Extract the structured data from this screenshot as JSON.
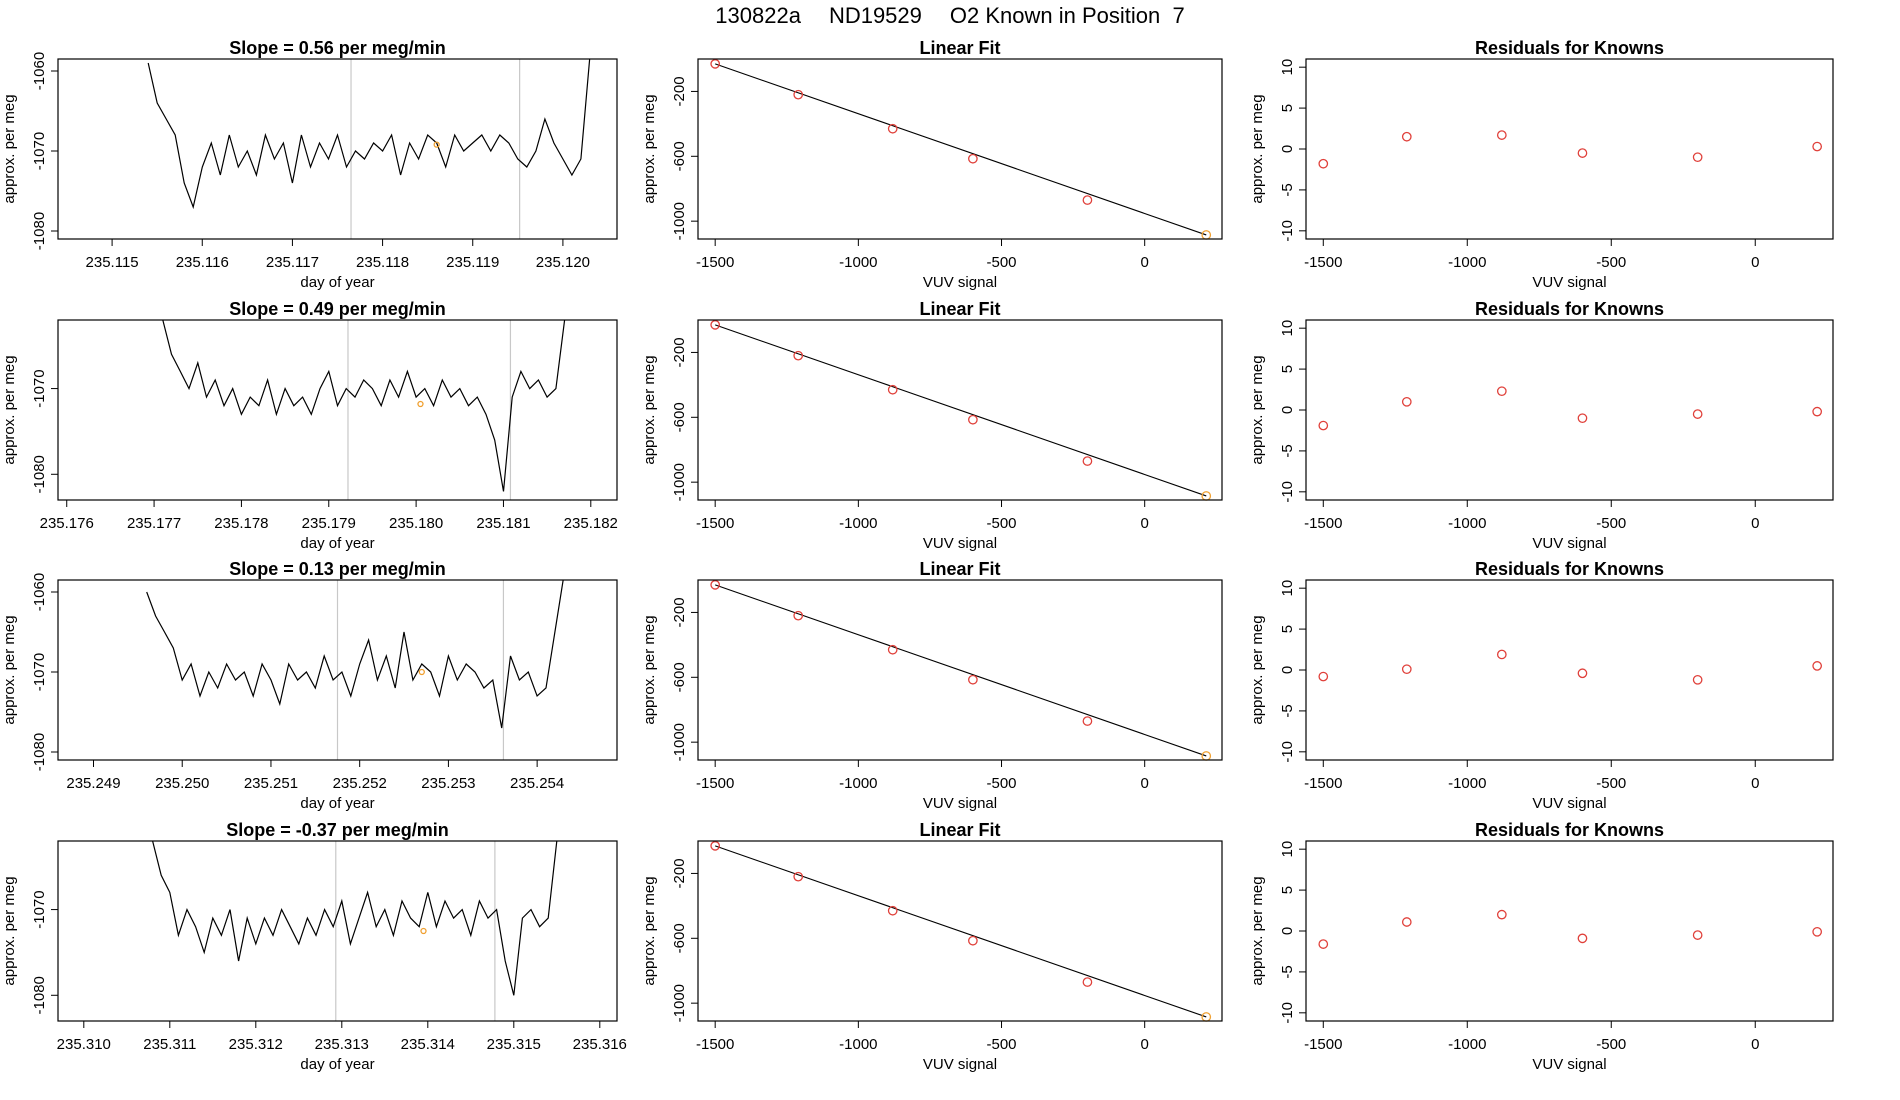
{
  "page": {
    "title_parts": [
      "130822a",
      "ND19529",
      "O2 Known in Position  7"
    ]
  },
  "chart_data": [
    {
      "type": "line",
      "title": "Slope =  0.56  per meg/min",
      "xlabel": "day of year",
      "ylabel": "approx. per meg",
      "xlim": [
        235.1144,
        235.1206
      ],
      "ylim": [
        -1081,
        -1058.5
      ],
      "xticks": [
        235.115,
        235.116,
        235.117,
        235.118,
        235.119,
        235.12
      ],
      "xtick_labels": [
        "235.115",
        "235.116",
        "235.117",
        "235.118",
        "235.119",
        "235.120"
      ],
      "yticks": [
        -1080,
        -1070,
        -1060
      ],
      "ytick_labels": [
        "-1080",
        "-1070",
        "-1060"
      ],
      "vlines": [
        235.11765,
        235.11952
      ],
      "highlight_point": {
        "x": 235.1186,
        "y": -1069.2
      },
      "x": [
        235.1154,
        235.1155,
        235.1156,
        235.1157,
        235.1158,
        235.1159,
        235.116,
        235.1161,
        235.1162,
        235.1163,
        235.1164,
        235.1165,
        235.1166,
        235.1167,
        235.1168,
        235.1169,
        235.117,
        235.1171,
        235.1172,
        235.1173,
        235.1174,
        235.1175,
        235.1176,
        235.1177,
        235.1178,
        235.1179,
        235.118,
        235.1181,
        235.1182,
        235.1183,
        235.1184,
        235.1185,
        235.1186,
        235.1187,
        235.1188,
        235.1189,
        235.119,
        235.1191,
        235.1192,
        235.1193,
        235.1194,
        235.1195,
        235.1196,
        235.1197,
        235.1198,
        235.1199,
        235.12,
        235.1201,
        235.1202,
        235.1203
      ],
      "y": [
        -1059,
        -1064,
        -1066,
        -1068,
        -1074,
        -1077,
        -1072,
        -1069,
        -1073,
        -1068,
        -1072,
        -1070,
        -1073,
        -1068,
        -1071,
        -1069,
        -1074,
        -1068,
        -1072,
        -1069,
        -1071,
        -1068,
        -1072,
        -1070,
        -1071,
        -1069,
        -1070,
        -1068,
        -1073,
        -1069,
        -1071,
        -1068,
        -1069,
        -1072,
        -1068,
        -1070,
        -1069,
        -1068,
        -1070,
        -1068,
        -1069,
        -1071,
        -1072,
        -1070,
        -1066,
        -1069,
        -1071,
        -1073,
        -1071,
        -1058
      ]
    },
    {
      "type": "scatter",
      "title": "Linear Fit",
      "xlabel": "VUV signal",
      "ylabel": "approx. per meg",
      "xlim": [
        -1560,
        270
      ],
      "ylim": [
        -1110,
        0
      ],
      "xticks": [
        -1500,
        -1000,
        -500,
        0
      ],
      "yticks": [
        -200,
        -600,
        -1000
      ],
      "x": [
        -1500,
        -1210,
        -880,
        -600,
        -200,
        215
      ],
      "y": [
        -30,
        -220,
        -430,
        -615,
        -870,
        -1085
      ],
      "fit_line": [
        [
          -1500,
          -30
        ],
        [
          215,
          -1085
        ]
      ]
    },
    {
      "type": "scatter",
      "title": "Residuals for Knowns",
      "xlabel": "VUV signal",
      "ylabel": "approx. per meg",
      "xlim": [
        -1560,
        270
      ],
      "ylim": [
        -11,
        11
      ],
      "xticks": [
        -1500,
        -1000,
        -500,
        0
      ],
      "yticks": [
        -10,
        -5,
        0,
        5,
        10
      ],
      "x": [
        -1500,
        -1210,
        -880,
        -600,
        -200,
        215
      ],
      "y": [
        -1.8,
        1.5,
        1.7,
        -0.5,
        -1.0,
        0.3
      ]
    },
    {
      "type": "line",
      "title": "Slope =  0.49  per meg/min",
      "xlabel": "day of year",
      "ylabel": "approx. per meg",
      "xlim": [
        235.1759,
        235.1823
      ],
      "ylim": [
        -1083,
        -1062
      ],
      "xticks": [
        235.176,
        235.177,
        235.178,
        235.179,
        235.18,
        235.181,
        235.182
      ],
      "xtick_labels": [
        "235.176",
        "235.177",
        "235.178",
        "235.179",
        "235.180",
        "235.181",
        "235.182"
      ],
      "yticks": [
        -1080,
        -1070
      ],
      "ytick_labels": [
        "-1080",
        "-1070"
      ],
      "vlines": [
        235.17922,
        235.18108
      ],
      "highlight_point": {
        "x": 235.18005,
        "y": -1071.8
      },
      "x": [
        235.1771,
        235.1772,
        235.1773,
        235.1774,
        235.1775,
        235.1776,
        235.1777,
        235.1778,
        235.1779,
        235.178,
        235.1781,
        235.1782,
        235.1783,
        235.1784,
        235.1785,
        235.1786,
        235.1787,
        235.1788,
        235.1789,
        235.179,
        235.1791,
        235.1792,
        235.1793,
        235.1794,
        235.1795,
        235.1796,
        235.1797,
        235.1798,
        235.1799,
        235.18,
        235.1801,
        235.1802,
        235.1803,
        235.1804,
        235.1805,
        235.1806,
        235.1807,
        235.1808,
        235.1809,
        235.181,
        235.1811,
        235.1812,
        235.1813,
        235.1814,
        235.1815,
        235.1816,
        235.1817
      ],
      "y": [
        -1062,
        -1066,
        -1068,
        -1070,
        -1067,
        -1071,
        -1069,
        -1072,
        -1070,
        -1073,
        -1071,
        -1072,
        -1069,
        -1073,
        -1070,
        -1072,
        -1071,
        -1073,
        -1070,
        -1068,
        -1072,
        -1070,
        -1071,
        -1069,
        -1070,
        -1072,
        -1069,
        -1071,
        -1068,
        -1071,
        -1070,
        -1072,
        -1069,
        -1071,
        -1070,
        -1072,
        -1071,
        -1073,
        -1076,
        -1082,
        -1071,
        -1068,
        -1070,
        -1069,
        -1071,
        -1070,
        -1062
      ]
    },
    {
      "type": "scatter",
      "title": "Linear Fit",
      "xlabel": "VUV signal",
      "ylabel": "approx. per meg",
      "xlim": [
        -1560,
        270
      ],
      "ylim": [
        -1110,
        0
      ],
      "xticks": [
        -1500,
        -1000,
        -500,
        0
      ],
      "yticks": [
        -200,
        -600,
        -1000
      ],
      "x": [
        -1500,
        -1210,
        -880,
        -600,
        -200,
        215
      ],
      "y": [
        -30,
        -220,
        -430,
        -615,
        -870,
        -1085
      ],
      "fit_line": [
        [
          -1500,
          -30
        ],
        [
          215,
          -1085
        ]
      ]
    },
    {
      "type": "scatter",
      "title": "Residuals for Knowns",
      "xlabel": "VUV signal",
      "ylabel": "approx. per meg",
      "xlim": [
        -1560,
        270
      ],
      "ylim": [
        -11,
        11
      ],
      "xticks": [
        -1500,
        -1000,
        -500,
        0
      ],
      "yticks": [
        -10,
        -5,
        0,
        5,
        10
      ],
      "x": [
        -1500,
        -1210,
        -880,
        -600,
        -200,
        215
      ],
      "y": [
        -1.9,
        1.0,
        2.3,
        -1.0,
        -0.5,
        -0.2
      ]
    },
    {
      "type": "line",
      "title": "Slope =  0.13  per meg/min",
      "xlabel": "day of year",
      "ylabel": "approx. per meg",
      "xlim": [
        235.2486,
        235.2549
      ],
      "ylim": [
        -1081,
        -1058.5
      ],
      "xticks": [
        235.249,
        235.25,
        235.251,
        235.252,
        235.253,
        235.254
      ],
      "xtick_labels": [
        "235.249",
        "235.250",
        "235.251",
        "235.252",
        "235.253",
        "235.254"
      ],
      "yticks": [
        -1080,
        -1070,
        -1060
      ],
      "ytick_labels": [
        "-1080",
        "-1070",
        "-1060"
      ],
      "vlines": [
        235.25175,
        235.25362
      ],
      "highlight_point": {
        "x": 235.2527,
        "y": -1070
      },
      "x": [
        235.2496,
        235.2497,
        235.2498,
        235.2499,
        235.25,
        235.2501,
        235.2502,
        235.2503,
        235.2504,
        235.2505,
        235.2506,
        235.2507,
        235.2508,
        235.2509,
        235.251,
        235.2511,
        235.2512,
        235.2513,
        235.2514,
        235.2515,
        235.2516,
        235.2517,
        235.2518,
        235.2519,
        235.252,
        235.2521,
        235.2522,
        235.2523,
        235.2524,
        235.2525,
        235.2526,
        235.2527,
        235.2528,
        235.2529,
        235.253,
        235.2531,
        235.2532,
        235.2533,
        235.2534,
        235.2535,
        235.2536,
        235.2537,
        235.2538,
        235.2539,
        235.254,
        235.2541,
        235.2542,
        235.2543
      ],
      "y": [
        -1060,
        -1063,
        -1065,
        -1067,
        -1071,
        -1069,
        -1073,
        -1070,
        -1072,
        -1069,
        -1071,
        -1070,
        -1073,
        -1069,
        -1071,
        -1074,
        -1069,
        -1071,
        -1070,
        -1072,
        -1068,
        -1071,
        -1070,
        -1073,
        -1069,
        -1066,
        -1071,
        -1068,
        -1072,
        -1065,
        -1071,
        -1069,
        -1070,
        -1073,
        -1068,
        -1071,
        -1069,
        -1070,
        -1072,
        -1071,
        -1077,
        -1068,
        -1071,
        -1070,
        -1073,
        -1072,
        -1065,
        -1058
      ]
    },
    {
      "type": "scatter",
      "title": "Linear Fit",
      "xlabel": "VUV signal",
      "ylabel": "approx. per meg",
      "xlim": [
        -1560,
        270
      ],
      "ylim": [
        -1110,
        0
      ],
      "xticks": [
        -1500,
        -1000,
        -500,
        0
      ],
      "yticks": [
        -200,
        -600,
        -1000
      ],
      "x": [
        -1500,
        -1210,
        -880,
        -600,
        -200,
        215
      ],
      "y": [
        -30,
        -220,
        -430,
        -615,
        -870,
        -1085
      ],
      "fit_line": [
        [
          -1500,
          -30
        ],
        [
          215,
          -1085
        ]
      ]
    },
    {
      "type": "scatter",
      "title": "Residuals for Knowns",
      "xlabel": "VUV signal",
      "ylabel": "approx. per meg",
      "xlim": [
        -1560,
        270
      ],
      "ylim": [
        -11,
        11
      ],
      "xticks": [
        -1500,
        -1000,
        -500,
        0
      ],
      "yticks": [
        -10,
        -5,
        0,
        5,
        10
      ],
      "x": [
        -1500,
        -1210,
        -880,
        -600,
        -200,
        215
      ],
      "y": [
        -0.8,
        0.1,
        1.9,
        -0.4,
        -1.2,
        0.5
      ]
    },
    {
      "type": "line",
      "title": "Slope =  -0.37  per meg/min",
      "xlabel": "day of year",
      "ylabel": "approx. per meg",
      "xlim": [
        235.3097,
        235.3162
      ],
      "ylim": [
        -1083,
        -1062
      ],
      "xticks": [
        235.31,
        235.311,
        235.312,
        235.313,
        235.314,
        235.315,
        235.316
      ],
      "xtick_labels": [
        "235.310",
        "235.311",
        "235.312",
        "235.313",
        "235.314",
        "235.315",
        "235.316"
      ],
      "yticks": [
        -1080,
        -1070
      ],
      "ytick_labels": [
        "-1080",
        "-1070"
      ],
      "vlines": [
        235.31293,
        235.31478
      ],
      "highlight_point": {
        "x": 235.31395,
        "y": -1072.5
      },
      "x": [
        235.3108,
        235.3109,
        235.311,
        235.3111,
        235.3112,
        235.3113,
        235.3114,
        235.3115,
        235.3116,
        235.3117,
        235.3118,
        235.3119,
        235.312,
        235.3121,
        235.3122,
        235.3123,
        235.3124,
        235.3125,
        235.3126,
        235.3127,
        235.3128,
        235.3129,
        235.313,
        235.3131,
        235.3132,
        235.3133,
        235.3134,
        235.3135,
        235.3136,
        235.3137,
        235.3138,
        235.3139,
        235.314,
        235.3141,
        235.3142,
        235.3143,
        235.3144,
        235.3145,
        235.3146,
        235.3147,
        235.3148,
        235.3149,
        235.315,
        235.3151,
        235.3152,
        235.3153,
        235.3154,
        235.3155
      ],
      "y": [
        -1062,
        -1066,
        -1068,
        -1073,
        -1070,
        -1072,
        -1075,
        -1071,
        -1073,
        -1070,
        -1076,
        -1071,
        -1074,
        -1071,
        -1073,
        -1070,
        -1072,
        -1074,
        -1071,
        -1073,
        -1070,
        -1072,
        -1069,
        -1074,
        -1071,
        -1068,
        -1072,
        -1070,
        -1073,
        -1069,
        -1071,
        -1072,
        -1068,
        -1072,
        -1069,
        -1071,
        -1070,
        -1073,
        -1069,
        -1071,
        -1070,
        -1076,
        -1080,
        -1071,
        -1070,
        -1072,
        -1071,
        -1062
      ]
    },
    {
      "type": "scatter",
      "title": "Linear Fit",
      "xlabel": "VUV signal",
      "ylabel": "approx. per meg",
      "xlim": [
        -1560,
        270
      ],
      "ylim": [
        -1110,
        0
      ],
      "xticks": [
        -1500,
        -1000,
        -500,
        0
      ],
      "yticks": [
        -200,
        -600,
        -1000
      ],
      "x": [
        -1500,
        -1210,
        -880,
        -600,
        -200,
        215
      ],
      "y": [
        -30,
        -220,
        -430,
        -615,
        -870,
        -1085
      ],
      "fit_line": [
        [
          -1500,
          -30
        ],
        [
          215,
          -1085
        ]
      ]
    },
    {
      "type": "scatter",
      "title": "Residuals for Knowns",
      "xlabel": "VUV signal",
      "ylabel": "approx. per meg",
      "xlim": [
        -1560,
        270
      ],
      "ylim": [
        -11,
        11
      ],
      "xticks": [
        -1500,
        -1000,
        -500,
        0
      ],
      "yticks": [
        -10,
        -5,
        0,
        5,
        10
      ],
      "x": [
        -1500,
        -1210,
        -880,
        -600,
        -200,
        215
      ],
      "y": [
        -1.6,
        1.1,
        2.0,
        -0.9,
        -0.5,
        -0.1
      ]
    }
  ],
  "colors": {
    "trace": "#000000",
    "vline": "#c8c8c8",
    "point": "#e0403a",
    "highlight": "#f0a030"
  }
}
